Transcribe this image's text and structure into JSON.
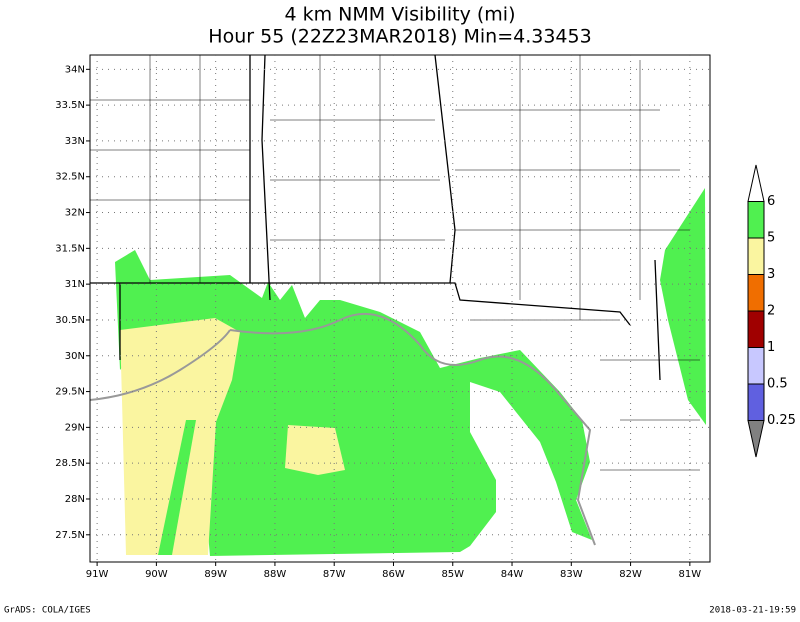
{
  "map": {
    "title": "4 km NMM Visibility (mi)",
    "subtitle": "Hour 55 (22Z23MAR2018) Min=4.33453",
    "xlim": [
      -91.12,
      -80.66
    ],
    "ylim": [
      27.12,
      34.2
    ],
    "xticks": [
      {
        "value": -91,
        "label": "91W"
      },
      {
        "value": -90,
        "label": "90W"
      },
      {
        "value": -89,
        "label": "89W"
      },
      {
        "value": -88,
        "label": "88W"
      },
      {
        "value": -87,
        "label": "87W"
      },
      {
        "value": -86,
        "label": "86W"
      },
      {
        "value": -85,
        "label": "85W"
      },
      {
        "value": -84,
        "label": "84W"
      },
      {
        "value": -83,
        "label": "83W"
      },
      {
        "value": -82,
        "label": "82W"
      },
      {
        "value": -81,
        "label": "81W"
      }
    ],
    "yticks": [
      {
        "value": 27.5,
        "label": "27.5N"
      },
      {
        "value": 28,
        "label": "28N"
      },
      {
        "value": 28.5,
        "label": "28.5N"
      },
      {
        "value": 29,
        "label": "29N"
      },
      {
        "value": 29.5,
        "label": "29.5N"
      },
      {
        "value": 30,
        "label": "30N"
      },
      {
        "value": 30.5,
        "label": "30.5N"
      },
      {
        "value": 31,
        "label": "31N"
      },
      {
        "value": 31.5,
        "label": "31.5N"
      },
      {
        "value": 32,
        "label": "32N"
      },
      {
        "value": 32.5,
        "label": "32.5N"
      },
      {
        "value": 33,
        "label": "33N"
      },
      {
        "value": 33.5,
        "label": "33.5N"
      },
      {
        "value": 34,
        "label": "34N"
      }
    ],
    "grid": true,
    "colorbar": {
      "labels": [
        "6",
        "5",
        "3",
        "2",
        "1",
        "0.5",
        "0.25"
      ],
      "colors": [
        "#ffffff",
        "#50f050",
        "#faf5a0",
        "#f06e00",
        "#a00000",
        "#c8c8ff",
        "#6060e0",
        "#808080"
      ]
    },
    "footer_left": "GrADS: COLA/IGES",
    "footer_right": "2018-03-21-19:59"
  }
}
